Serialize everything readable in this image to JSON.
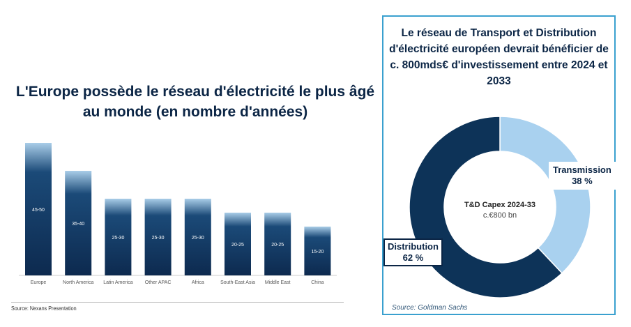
{
  "chart_data": [
    {
      "type": "bar",
      "title": "L'Europe possède le réseau d'électricité le plus âgé au monde (en nombre d'années)",
      "categories": [
        "Europe",
        "North America",
        "Latin America",
        "Other APAC",
        "Africa",
        "South-East Asia",
        "Middle East",
        "China"
      ],
      "labels": [
        "45-50",
        "35-40",
        "25-30",
        "25-30",
        "25-30",
        "20-25",
        "20-25",
        "15-20"
      ],
      "ranges": [
        [
          45,
          50
        ],
        [
          35,
          40
        ],
        [
          25,
          30
        ],
        [
          25,
          30
        ],
        [
          25,
          30
        ],
        [
          20,
          25
        ],
        [
          20,
          25
        ],
        [
          15,
          20
        ]
      ],
      "source": "Source: Nexans Presentation",
      "colors": {
        "top": "#a9cde8",
        "bottom": "#0d2a4f"
      }
    },
    {
      "type": "pie",
      "title": "Le réseau de Transport et Distribution d'électricité européen devrait bénéficier de c. 800mds€ d'investissement entre 2024 et 2033",
      "center_title": "T&D Capex 2024-33",
      "center_value": "c.€800 bn",
      "slices": [
        {
          "name": "Transmission",
          "value": 38,
          "label": "38 %",
          "color": "#a9d1ef"
        },
        {
          "name": "Distribution",
          "value": 62,
          "label": "62 %",
          "color": "#0d3358"
        }
      ],
      "source": "Source: Goldman Sachs"
    }
  ]
}
